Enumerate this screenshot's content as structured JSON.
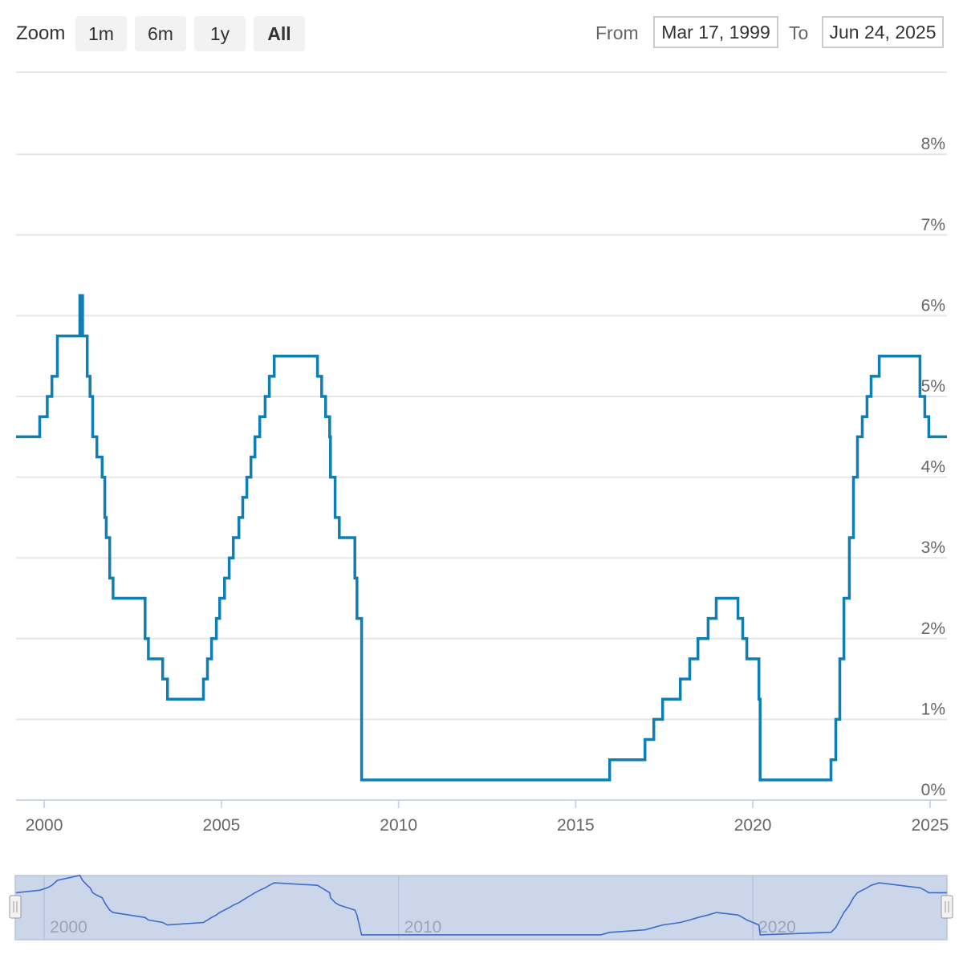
{
  "toolbar": {
    "zoom_label": "Zoom",
    "buttons": [
      "1m",
      "6m",
      "1y",
      "All"
    ],
    "active_button": "All",
    "from_label": "From",
    "to_label": "To",
    "from_value": "Mar 17, 1999",
    "to_value": "Jun 24, 2025"
  },
  "colors": {
    "series": "#0e7fb4",
    "navigator_line": "#3f6cc9",
    "navigator_fill": "#ccd6eb",
    "grid": "#e6e6e6"
  },
  "chart_data": {
    "type": "line",
    "step": true,
    "title": "",
    "xlabel": "",
    "ylabel": "",
    "ylim": [
      0,
      8.75
    ],
    "xlim": [
      "1999-03-17",
      "2025-06-24"
    ],
    "y_ticks": [
      "0%",
      "1%",
      "2%",
      "3%",
      "4%",
      "5%",
      "6%",
      "7%",
      "8%"
    ],
    "x_ticks": [
      "2000",
      "2005",
      "2010",
      "2015",
      "2020",
      "2025"
    ],
    "navigator_ticks": [
      "2000",
      "2010",
      "2020"
    ],
    "grid": true,
    "series": [
      {
        "x": [
          "1999-03-17",
          "1999-11-16",
          "2000-02-02",
          "2000-03-21",
          "2000-05-16",
          "2001-01-03",
          "2001-01-31",
          "2001-03-20",
          "2001-04-18",
          "2001-05-15",
          "2001-06-27",
          "2001-08-21",
          "2001-09-17",
          "2001-10-02",
          "2001-11-06",
          "2001-12-11",
          "2002-11-06",
          "2002-12-10",
          "2003-05-06",
          "2003-06-25",
          "2004-06-30",
          "2004-08-10",
          "2004-09-21",
          "2004-11-10",
          "2004-12-14",
          "2005-02-02",
          "2005-03-22",
          "2005-05-03",
          "2005-06-30",
          "2005-08-09",
          "2005-09-20",
          "2005-11-01",
          "2005-12-13",
          "2006-01-31",
          "2006-03-28",
          "2006-05-10",
          "2006-06-29",
          "2007-09-18",
          "2007-10-31",
          "2007-12-11",
          "2008-01-22",
          "2008-01-30",
          "2008-03-18",
          "2008-04-30",
          "2008-10-08",
          "2008-10-29",
          "2008-12-16",
          "2010-03-17",
          "2010-06-23",
          "2010-08-11",
          "2010-09-22",
          "2011-03-16",
          "2015-03-04",
          "2015-03-19",
          "2015-09-17",
          "2015-12-17",
          "2016-12-15",
          "2017-03-16",
          "2017-06-15",
          "2017-12-14",
          "2018-03-22",
          "2018-06-14",
          "2018-09-27",
          "2018-12-20",
          "2019-08-01",
          "2019-09-19",
          "2019-10-31",
          "2020-03-04",
          "2020-03-16",
          "2022-03-17",
          "2022-05-05",
          "2022-06-16",
          "2022-07-28",
          "2022-09-22",
          "2022-11-03",
          "2022-12-15",
          "2023-02-02",
          "2023-03-23",
          "2023-05-04",
          "2023-07-27",
          "2024-09-19",
          "2024-11-08",
          "2024-12-19",
          "2025-06-24"
        ],
        "y": [
          4.5,
          4.75,
          5.0,
          5.25,
          5.75,
          6.25,
          5.75,
          5.25,
          5.0,
          4.5,
          4.25,
          4.0,
          3.5,
          3.25,
          2.75,
          2.5,
          2.0,
          1.75,
          1.5,
          1.25,
          1.5,
          1.75,
          2.0,
          2.25,
          2.5,
          2.75,
          3.0,
          3.25,
          3.5,
          3.75,
          4.0,
          4.25,
          4.5,
          4.75,
          5.0,
          5.25,
          5.5,
          5.25,
          5.0,
          4.75,
          4.5,
          4.0,
          3.5,
          3.25,
          2.75,
          2.25,
          0.25,
          0.25,
          0.25,
          0.25,
          0.25,
          0.25,
          0.25,
          0.25,
          0.25,
          0.5,
          0.75,
          1.0,
          1.25,
          1.5,
          1.75,
          2.0,
          2.25,
          2.5,
          2.25,
          2.0,
          1.75,
          1.25,
          0.25,
          0.5,
          1.0,
          1.75,
          2.5,
          3.25,
          4.0,
          4.5,
          4.75,
          5.0,
          5.25,
          5.5,
          5.0,
          4.75,
          4.5,
          4.5
        ]
      }
    ]
  }
}
